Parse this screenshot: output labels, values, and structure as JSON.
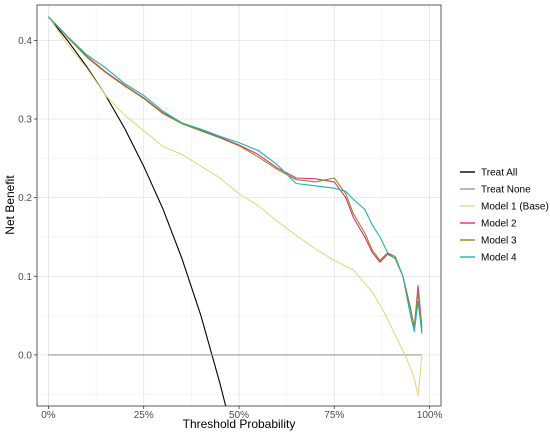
{
  "chart_data": {
    "type": "line",
    "xlabel": "Threshold Probability",
    "ylabel": "Net Benefit",
    "xlim": [
      -0.03,
      1.03
    ],
    "ylim": [
      -0.065,
      0.445
    ],
    "grid": true,
    "legend_position": "right",
    "x_ticks": [
      {
        "value": 0.0,
        "label": "0%"
      },
      {
        "value": 0.25,
        "label": "25%"
      },
      {
        "value": 0.5,
        "label": "50%"
      },
      {
        "value": 0.75,
        "label": "75%"
      },
      {
        "value": 1.0,
        "label": "100%"
      }
    ],
    "y_ticks": [
      {
        "value": 0.0,
        "label": "0.0"
      },
      {
        "value": 0.1,
        "label": "0.1"
      },
      {
        "value": 0.2,
        "label": "0.2"
      },
      {
        "value": 0.3,
        "label": "0.3"
      },
      {
        "value": 0.4,
        "label": "0.4"
      }
    ],
    "series": [
      {
        "name": "Treat All",
        "color": "#000000",
        "x": [
          0,
          0.05,
          0.1,
          0.15,
          0.2,
          0.25,
          0.3,
          0.35,
          0.4,
          0.45,
          0.465
        ],
        "y": [
          0.43,
          0.4,
          0.367,
          0.33,
          0.288,
          0.24,
          0.186,
          0.123,
          0.05,
          -0.036,
          -0.065
        ]
      },
      {
        "name": "Treat None",
        "color": "#999999",
        "x": [
          0,
          0.98
        ],
        "y": [
          0,
          0
        ]
      },
      {
        "name": "Model 1 (Base)",
        "color": "#e6d58a",
        "x": [
          0,
          0.05,
          0.1,
          0.15,
          0.2,
          0.25,
          0.3,
          0.35,
          0.4,
          0.45,
          0.5,
          0.55,
          0.6,
          0.65,
          0.7,
          0.75,
          0.8,
          0.85,
          0.88,
          0.91,
          0.94,
          0.96,
          0.97,
          0.98
        ],
        "y": [
          0.43,
          0.395,
          0.365,
          0.33,
          0.305,
          0.285,
          0.265,
          0.255,
          0.24,
          0.225,
          0.205,
          0.19,
          0.17,
          0.152,
          0.135,
          0.12,
          0.108,
          0.08,
          0.055,
          0.025,
          -0.005,
          -0.03,
          -0.052,
          0.0
        ]
      },
      {
        "name": "Model 2",
        "color": "#e7298a",
        "x": [
          0,
          0.05,
          0.1,
          0.15,
          0.2,
          0.25,
          0.3,
          0.35,
          0.4,
          0.45,
          0.5,
          0.55,
          0.6,
          0.65,
          0.7,
          0.75,
          0.78,
          0.8,
          0.83,
          0.85,
          0.87,
          0.89,
          0.91,
          0.93,
          0.95,
          0.96,
          0.97,
          0.98
        ],
        "y": [
          0.43,
          0.405,
          0.38,
          0.36,
          0.343,
          0.327,
          0.308,
          0.295,
          0.286,
          0.277,
          0.267,
          0.255,
          0.238,
          0.225,
          0.224,
          0.22,
          0.2,
          0.175,
          0.15,
          0.13,
          0.118,
          0.128,
          0.123,
          0.1,
          0.058,
          0.035,
          0.088,
          0.035
        ]
      },
      {
        "name": "Model 3",
        "color": "#8c8c1a",
        "x": [
          0,
          0.05,
          0.1,
          0.15,
          0.2,
          0.25,
          0.3,
          0.35,
          0.4,
          0.45,
          0.5,
          0.55,
          0.6,
          0.65,
          0.7,
          0.75,
          0.78,
          0.8,
          0.83,
          0.85,
          0.87,
          0.89,
          0.91,
          0.93,
          0.95,
          0.96,
          0.97,
          0.98
        ],
        "y": [
          0.43,
          0.404,
          0.379,
          0.359,
          0.342,
          0.326,
          0.307,
          0.294,
          0.285,
          0.276,
          0.266,
          0.252,
          0.236,
          0.223,
          0.22,
          0.225,
          0.205,
          0.18,
          0.155,
          0.133,
          0.12,
          0.13,
          0.125,
          0.1,
          0.06,
          0.035,
          0.08,
          0.03
        ]
      },
      {
        "name": "Model 4",
        "color": "#1fb3b3",
        "x": [
          0,
          0.05,
          0.1,
          0.15,
          0.2,
          0.25,
          0.3,
          0.35,
          0.4,
          0.45,
          0.5,
          0.55,
          0.6,
          0.65,
          0.7,
          0.75,
          0.78,
          0.8,
          0.83,
          0.85,
          0.87,
          0.89,
          0.91,
          0.93,
          0.95,
          0.96,
          0.97,
          0.98
        ],
        "y": [
          0.43,
          0.405,
          0.382,
          0.365,
          0.345,
          0.33,
          0.31,
          0.295,
          0.287,
          0.278,
          0.27,
          0.26,
          0.242,
          0.218,
          0.215,
          0.212,
          0.208,
          0.198,
          0.185,
          0.165,
          0.15,
          0.13,
          0.122,
          0.1,
          0.05,
          0.03,
          0.068,
          0.027
        ]
      }
    ]
  }
}
